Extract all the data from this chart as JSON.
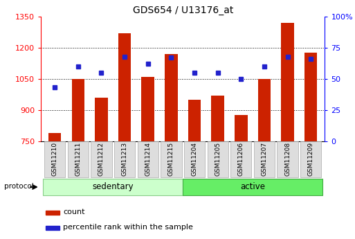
{
  "title": "GDS654 / U13176_at",
  "samples": [
    "GSM11210",
    "GSM11211",
    "GSM11212",
    "GSM11213",
    "GSM11214",
    "GSM11215",
    "GSM11204",
    "GSM11205",
    "GSM11206",
    "GSM11207",
    "GSM11208",
    "GSM11209"
  ],
  "counts": [
    790,
    1048,
    960,
    1270,
    1060,
    1170,
    950,
    970,
    875,
    1048,
    1320,
    1175
  ],
  "percentile_ranks": [
    43,
    60,
    55,
    68,
    62,
    67,
    55,
    55,
    50,
    60,
    68,
    66
  ],
  "group_sedentary": {
    "label": "sedentary",
    "count": 6,
    "color": "#ccffcc",
    "edge": "#88cc88"
  },
  "group_active": {
    "label": "active",
    "count": 6,
    "color": "#66ee66",
    "edge": "#44aa44"
  },
  "protocol_label": "protocol",
  "ylim_left": [
    750,
    1350
  ],
  "ylim_right": [
    0,
    100
  ],
  "yticks_left": [
    750,
    900,
    1050,
    1200,
    1350
  ],
  "yticks_right": [
    0,
    25,
    50,
    75,
    100
  ],
  "ytick_labels_right": [
    "0",
    "25",
    "50",
    "75",
    "100%"
  ],
  "bar_color": "#cc2200",
  "dot_color": "#2222cc",
  "bar_width": 0.55,
  "grid_yticks": [
    900,
    1050,
    1200
  ],
  "legend_count_label": "count",
  "legend_percentile_label": "percentile rank within the sample",
  "xtick_bg_color": "#dddddd",
  "xtick_edge_color": "#aaaaaa"
}
